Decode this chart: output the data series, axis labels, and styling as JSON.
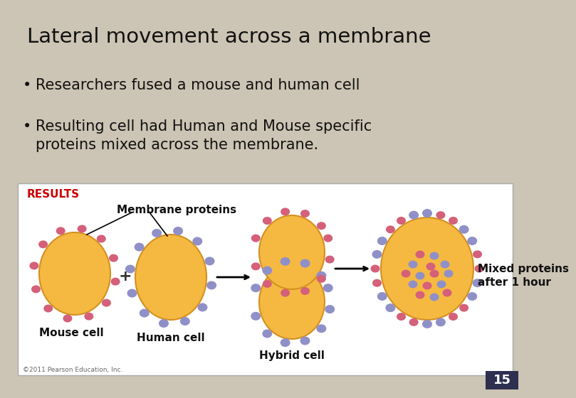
{
  "title": "Lateral movement across a membrane",
  "bullet1": "Researchers fused a mouse and human cell",
  "bullet2": "Resulting cell had Human and Mouse specific\nproteins mixed across the membrane.",
  "results_label": "RESULTS",
  "label_mouse": "Mouse cell",
  "label_human": "Human cell",
  "label_hybrid": "Hybrid cell",
  "label_mixed": "Mixed proteins\nafter 1 hour",
  "label_membrane": "Membrane proteins",
  "label_plus": "+",
  "copyright": "©2011 Pearson Education, Inc.",
  "page_number": "15",
  "bg_color": "#ccc4b4",
  "results_box_bg": "#ffffff",
  "results_color": "#cc0000",
  "title_color": "#111111",
  "text_color": "#111111",
  "cell_body_color": "#f5b942",
  "cell_body_edge": "#d49020",
  "pink_protein_color": "#d4607a",
  "blue_protein_color": "#9090c8",
  "page_num_bg": "#2e3050",
  "page_num_color": "#ffffff"
}
